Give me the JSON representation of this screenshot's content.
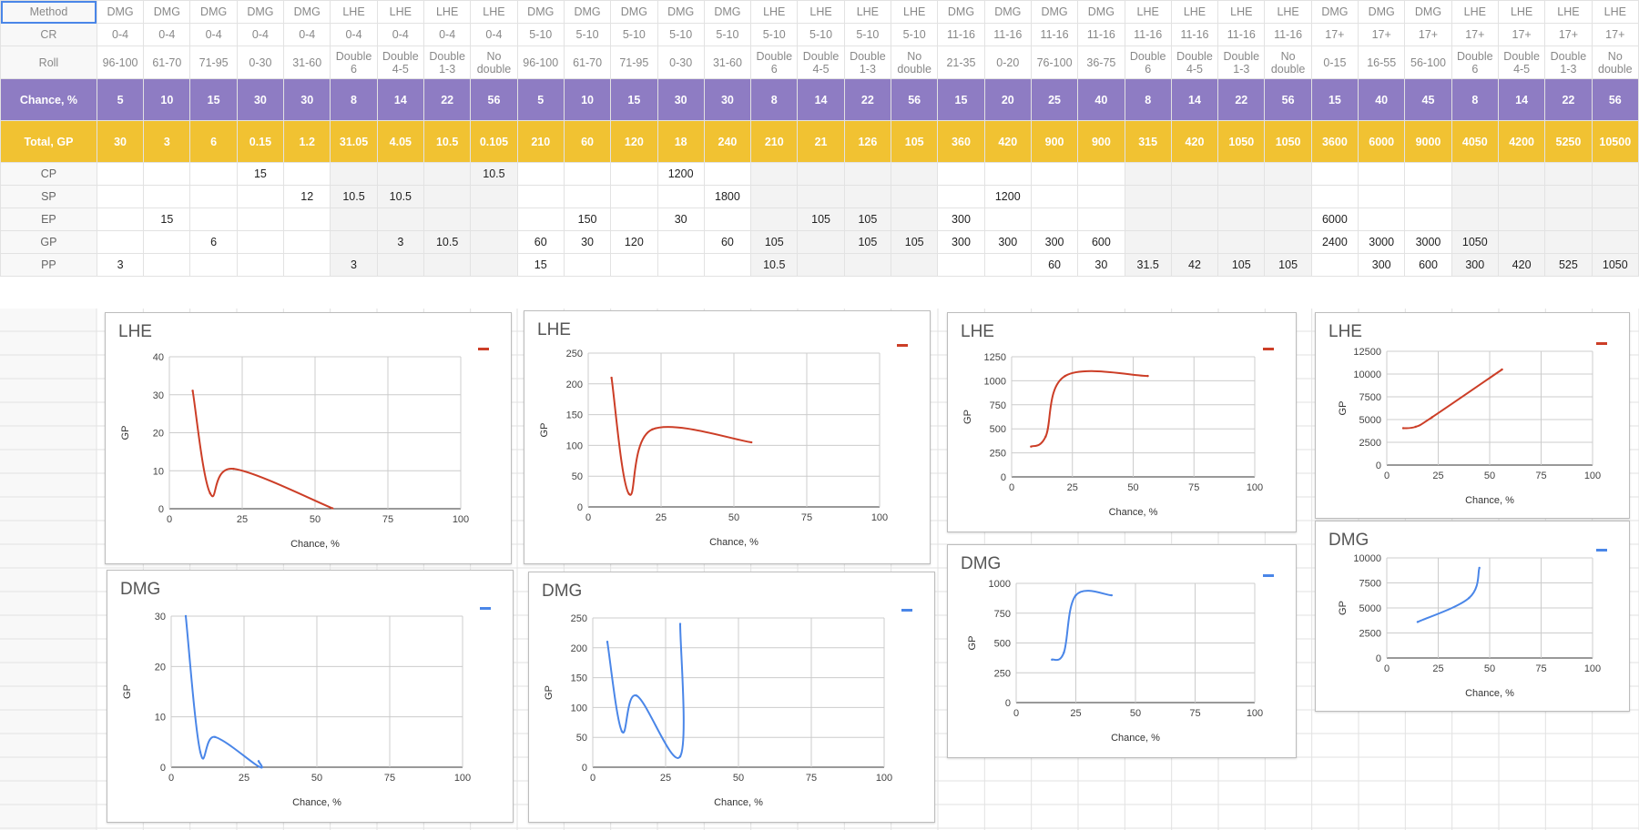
{
  "sheet": {
    "row_labels": [
      "Method",
      "CR",
      "Roll",
      "Chance, %",
      "Total, GP",
      "CP",
      "SP",
      "EP",
      "GP",
      "PP"
    ],
    "columns": [
      {
        "method": "DMG",
        "cr": "0-4",
        "roll": "96-100",
        "chance": "5",
        "total": "30",
        "cp": "",
        "sp": "",
        "ep": "",
        "gp": "",
        "pp": "3"
      },
      {
        "method": "DMG",
        "cr": "0-4",
        "roll": "61-70",
        "chance": "10",
        "total": "3",
        "cp": "",
        "sp": "",
        "ep": "15",
        "gp": "",
        "pp": ""
      },
      {
        "method": "DMG",
        "cr": "0-4",
        "roll": "71-95",
        "chance": "15",
        "total": "6",
        "cp": "",
        "sp": "",
        "ep": "",
        "gp": "6",
        "pp": ""
      },
      {
        "method": "DMG",
        "cr": "0-4",
        "roll": "0-30",
        "chance": "30",
        "total": "0.15",
        "cp": "15",
        "sp": "",
        "ep": "",
        "gp": "",
        "pp": ""
      },
      {
        "method": "DMG",
        "cr": "0-4",
        "roll": "31-60",
        "chance": "30",
        "total": "1.2",
        "cp": "",
        "sp": "12",
        "ep": "",
        "gp": "",
        "pp": ""
      },
      {
        "method": "LHE",
        "cr": "0-4",
        "roll": "Double\n6",
        "chance": "8",
        "total": "31.05",
        "cp": "",
        "sp": "10.5",
        "ep": "",
        "gp": "",
        "pp": "3"
      },
      {
        "method": "LHE",
        "cr": "0-4",
        "roll": "Double\n4-5",
        "chance": "14",
        "total": "4.05",
        "cp": "",
        "sp": "10.5",
        "ep": "",
        "gp": "3",
        "pp": ""
      },
      {
        "method": "LHE",
        "cr": "0-4",
        "roll": "Double\n1-3",
        "chance": "22",
        "total": "10.5",
        "cp": "",
        "sp": "",
        "ep": "",
        "gp": "10.5",
        "pp": ""
      },
      {
        "method": "LHE",
        "cr": "0-4",
        "roll": "No\ndouble",
        "chance": "56",
        "total": "0.105",
        "cp": "10.5",
        "sp": "",
        "ep": "",
        "gp": "",
        "pp": ""
      },
      {
        "method": "DMG",
        "cr": "5-10",
        "roll": "96-100",
        "chance": "5",
        "total": "210",
        "cp": "",
        "sp": "",
        "ep": "",
        "gp": "60",
        "pp": "15"
      },
      {
        "method": "DMG",
        "cr": "5-10",
        "roll": "61-70",
        "chance": "10",
        "total": "60",
        "cp": "",
        "sp": "",
        "ep": "150",
        "gp": "30",
        "pp": ""
      },
      {
        "method": "DMG",
        "cr": "5-10",
        "roll": "71-95",
        "chance": "15",
        "total": "120",
        "cp": "",
        "sp": "",
        "ep": "",
        "gp": "120",
        "pp": ""
      },
      {
        "method": "DMG",
        "cr": "5-10",
        "roll": "0-30",
        "chance": "30",
        "total": "18",
        "cp": "1200",
        "sp": "",
        "ep": "30",
        "gp": "",
        "pp": ""
      },
      {
        "method": "DMG",
        "cr": "5-10",
        "roll": "31-60",
        "chance": "30",
        "total": "240",
        "cp": "",
        "sp": "1800",
        "ep": "",
        "gp": "60",
        "pp": ""
      },
      {
        "method": "LHE",
        "cr": "5-10",
        "roll": "Double\n6",
        "chance": "8",
        "total": "210",
        "cp": "",
        "sp": "",
        "ep": "",
        "gp": "105",
        "pp": "10.5"
      },
      {
        "method": "LHE",
        "cr": "5-10",
        "roll": "Double\n4-5",
        "chance": "14",
        "total": "21",
        "cp": "",
        "sp": "",
        "ep": "105",
        "gp": "",
        "pp": ""
      },
      {
        "method": "LHE",
        "cr": "5-10",
        "roll": "Double\n1-3",
        "chance": "22",
        "total": "126",
        "cp": "",
        "sp": "",
        "ep": "105",
        "gp": "105",
        "pp": ""
      },
      {
        "method": "LHE",
        "cr": "5-10",
        "roll": "No\ndouble",
        "chance": "56",
        "total": "105",
        "cp": "",
        "sp": "",
        "ep": "",
        "gp": "105",
        "pp": ""
      },
      {
        "method": "DMG",
        "cr": "11-16",
        "roll": "21-35",
        "chance": "15",
        "total": "360",
        "cp": "",
        "sp": "",
        "ep": "300",
        "gp": "300",
        "pp": ""
      },
      {
        "method": "DMG",
        "cr": "11-16",
        "roll": "0-20",
        "chance": "20",
        "total": "420",
        "cp": "",
        "sp": "1200",
        "ep": "",
        "gp": "300",
        "pp": ""
      },
      {
        "method": "DMG",
        "cr": "11-16",
        "roll": "76-100",
        "chance": "25",
        "total": "900",
        "cp": "",
        "sp": "",
        "ep": "",
        "gp": "300",
        "pp": "60"
      },
      {
        "method": "DMG",
        "cr": "11-16",
        "roll": "36-75",
        "chance": "40",
        "total": "900",
        "cp": "",
        "sp": "",
        "ep": "",
        "gp": "600",
        "pp": "30"
      },
      {
        "method": "LHE",
        "cr": "11-16",
        "roll": "Double\n6",
        "chance": "8",
        "total": "315",
        "cp": "",
        "sp": "",
        "ep": "",
        "gp": "",
        "pp": "31.5"
      },
      {
        "method": "LHE",
        "cr": "11-16",
        "roll": "Double\n4-5",
        "chance": "14",
        "total": "420",
        "cp": "",
        "sp": "",
        "ep": "",
        "gp": "",
        "pp": "42"
      },
      {
        "method": "LHE",
        "cr": "11-16",
        "roll": "Double\n1-3",
        "chance": "22",
        "total": "1050",
        "cp": "",
        "sp": "",
        "ep": "",
        "gp": "",
        "pp": "105"
      },
      {
        "method": "LHE",
        "cr": "11-16",
        "roll": "No\ndouble",
        "chance": "56",
        "total": "1050",
        "cp": "",
        "sp": "",
        "ep": "",
        "gp": "",
        "pp": "105"
      },
      {
        "method": "DMG",
        "cr": "17+",
        "roll": "0-15",
        "chance": "15",
        "total": "3600",
        "cp": "",
        "sp": "",
        "ep": "6000",
        "gp": "2400",
        "pp": ""
      },
      {
        "method": "DMG",
        "cr": "17+",
        "roll": "16-55",
        "chance": "40",
        "total": "6000",
        "cp": "",
        "sp": "",
        "ep": "",
        "gp": "3000",
        "pp": "300"
      },
      {
        "method": "DMG",
        "cr": "17+",
        "roll": "56-100",
        "chance": "45",
        "total": "9000",
        "cp": "",
        "sp": "",
        "ep": "",
        "gp": "3000",
        "pp": "600"
      },
      {
        "method": "LHE",
        "cr": "17+",
        "roll": "Double\n6",
        "chance": "8",
        "total": "4050",
        "cp": "",
        "sp": "",
        "ep": "",
        "gp": "1050",
        "pp": "300"
      },
      {
        "method": "LHE",
        "cr": "17+",
        "roll": "Double\n4-5",
        "chance": "14",
        "total": "4200",
        "cp": "",
        "sp": "",
        "ep": "",
        "gp": "",
        "pp": "420"
      },
      {
        "method": "LHE",
        "cr": "17+",
        "roll": "Double\n1-3",
        "chance": "22",
        "total": "5250",
        "cp": "",
        "sp": "",
        "ep": "",
        "gp": "",
        "pp": "525"
      },
      {
        "method": "LHE",
        "cr": "17+",
        "roll": "No\ndouble",
        "chance": "56",
        "total": "10500",
        "cp": "",
        "sp": "",
        "ep": "",
        "gp": "",
        "pp": "1050"
      }
    ]
  },
  "colors": {
    "chance_row": "#8e7cc3",
    "total_row": "#f1c232",
    "lhe_series": "#cc3e27",
    "dmg_series": "#4a86e8",
    "selection": "#4a86e8"
  },
  "chart_data": [
    {
      "type": "line",
      "title": "LHE",
      "xlabel": "Chance, %",
      "ylabel": "GP",
      "xlim": [
        0,
        100
      ],
      "ylim": [
        0,
        40
      ],
      "xticks": [
        "0",
        "25",
        "50",
        "75",
        "100"
      ],
      "yticks": [
        "0",
        "10",
        "20",
        "30",
        "40"
      ],
      "color": "#cc3e27",
      "legend": "top-right",
      "x": [
        8,
        14,
        22,
        56
      ],
      "y": [
        31.05,
        4.05,
        10.5,
        0.105
      ]
    },
    {
      "type": "line",
      "title": "LHE",
      "xlabel": "Chance, %",
      "ylabel": "GP",
      "xlim": [
        0,
        100
      ],
      "ylim": [
        0,
        250
      ],
      "xticks": [
        "0",
        "25",
        "50",
        "75",
        "100"
      ],
      "yticks": [
        "0",
        "50",
        "100",
        "150",
        "200",
        "250"
      ],
      "color": "#cc3e27",
      "legend": "top-right",
      "x": [
        8,
        14,
        22,
        56
      ],
      "y": [
        210,
        21,
        126,
        105
      ]
    },
    {
      "type": "line",
      "title": "LHE",
      "xlabel": "Chance, %",
      "ylabel": "GP",
      "xlim": [
        0,
        100
      ],
      "ylim": [
        0,
        1250
      ],
      "xticks": [
        "0",
        "25",
        "50",
        "75",
        "100"
      ],
      "yticks": [
        "0",
        "250",
        "500",
        "750",
        "1000",
        "1250"
      ],
      "color": "#cc3e27",
      "legend": "top-right",
      "x": [
        8,
        14,
        22,
        56
      ],
      "y": [
        315,
        420,
        1050,
        1050
      ]
    },
    {
      "type": "line",
      "title": "LHE",
      "xlabel": "Chance, %",
      "ylabel": "GP",
      "xlim": [
        0,
        100
      ],
      "ylim": [
        0,
        12500
      ],
      "xticks": [
        "0",
        "25",
        "50",
        "75",
        "100"
      ],
      "yticks": [
        "0",
        "2500",
        "5000",
        "7500",
        "10000",
        "12500"
      ],
      "color": "#cc3e27",
      "legend": "top-right",
      "x": [
        8,
        14,
        22,
        56
      ],
      "y": [
        4050,
        4200,
        5250,
        10500
      ]
    },
    {
      "type": "line",
      "title": "DMG",
      "xlabel": "Chance, %",
      "ylabel": "GP",
      "xlim": [
        0,
        100
      ],
      "ylim": [
        0,
        30
      ],
      "xticks": [
        "0",
        "25",
        "50",
        "75",
        "100"
      ],
      "yticks": [
        "0",
        "10",
        "20",
        "30"
      ],
      "color": "#4a86e8",
      "legend": "top-right",
      "x": [
        5,
        10,
        15,
        30,
        30
      ],
      "y": [
        30,
        3,
        6,
        0.15,
        1.2
      ]
    },
    {
      "type": "line",
      "title": "DMG",
      "xlabel": "Chance, %",
      "ylabel": "GP",
      "xlim": [
        0,
        100
      ],
      "ylim": [
        0,
        250
      ],
      "xticks": [
        "0",
        "25",
        "50",
        "75",
        "100"
      ],
      "yticks": [
        "0",
        "50",
        "100",
        "150",
        "200",
        "250"
      ],
      "color": "#4a86e8",
      "legend": "top-right",
      "x": [
        5,
        10,
        15,
        30,
        30
      ],
      "y": [
        210,
        60,
        120,
        18,
        240
      ]
    },
    {
      "type": "line",
      "title": "DMG",
      "xlabel": "Chance, %",
      "ylabel": "GP",
      "xlim": [
        0,
        100
      ],
      "ylim": [
        0,
        1000
      ],
      "xticks": [
        "0",
        "25",
        "50",
        "75",
        "100"
      ],
      "yticks": [
        "0",
        "250",
        "500",
        "750",
        "1000"
      ],
      "color": "#4a86e8",
      "legend": "top-right",
      "x": [
        15,
        20,
        25,
        40
      ],
      "y": [
        360,
        420,
        900,
        900
      ]
    },
    {
      "type": "line",
      "title": "DMG",
      "xlabel": "Chance, %",
      "ylabel": "GP",
      "xlim": [
        0,
        100
      ],
      "ylim": [
        0,
        10000
      ],
      "xticks": [
        "0",
        "25",
        "50",
        "75",
        "100"
      ],
      "yticks": [
        "0",
        "2500",
        "5000",
        "7500",
        "10000"
      ],
      "color": "#4a86e8",
      "legend": "top-right",
      "x": [
        15,
        40,
        45
      ],
      "y": [
        3600,
        6000,
        9000
      ]
    }
  ]
}
